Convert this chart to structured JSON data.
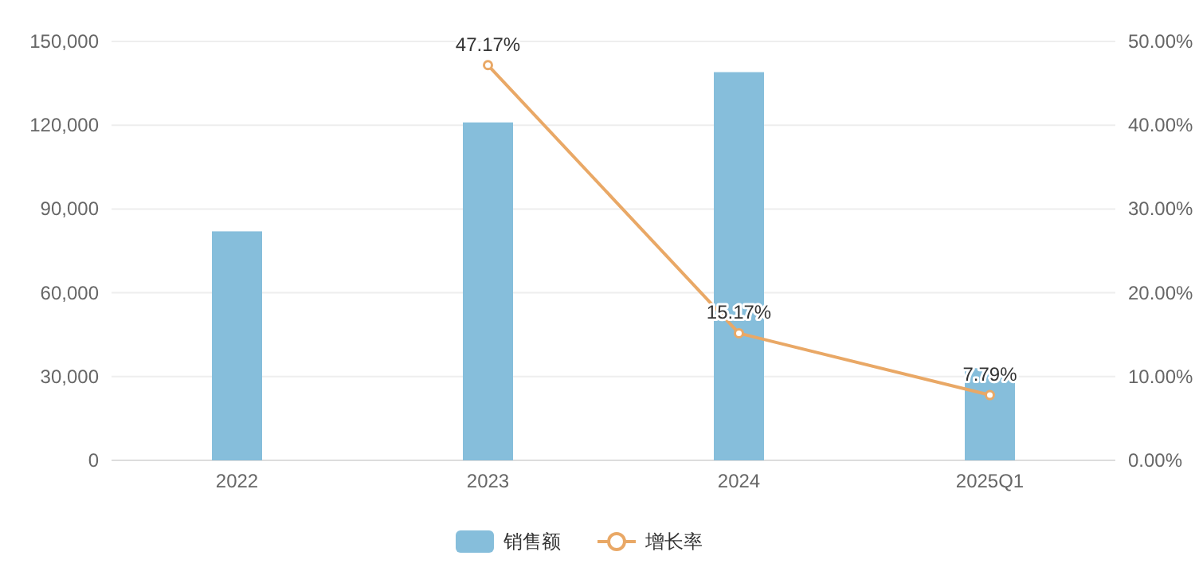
{
  "chart_data": {
    "type": "bar",
    "categories": [
      "2022",
      "2023",
      "2024",
      "2025Q1"
    ],
    "series": [
      {
        "name": "销售额",
        "color": "#86bedb",
        "values": [
          82000,
          121000,
          139000,
          33000
        ]
      },
      {
        "name": "增长率",
        "type": "line",
        "axis": "y2",
        "color": "#e9a866",
        "marker": "circle",
        "values": [
          null,
          47.17,
          15.17,
          7.79
        ],
        "value_labels": [
          null,
          "47.17%",
          "15.17%",
          "7.79%"
        ]
      }
    ],
    "ylim": [
      0,
      150000
    ],
    "yticks": [
      {
        "value": 0,
        "label": "0"
      },
      {
        "value": 30000,
        "label": "30,000"
      },
      {
        "value": 60000,
        "label": "60,000"
      },
      {
        "value": 90000,
        "label": "90,000"
      },
      {
        "value": 120000,
        "label": "120,000"
      },
      {
        "value": 150000,
        "label": "150,000"
      }
    ],
    "y2lim": [
      0,
      50
    ],
    "y2ticks": [
      {
        "value": 0,
        "label": "0.00%"
      },
      {
        "value": 10,
        "label": "10.00%"
      },
      {
        "value": 20,
        "label": "20.00%"
      },
      {
        "value": 30,
        "label": "30.00%"
      },
      {
        "value": 40,
        "label": "40.00%"
      },
      {
        "value": 50,
        "label": "50.00%"
      }
    ],
    "grid": "y",
    "legend": "bottom"
  }
}
